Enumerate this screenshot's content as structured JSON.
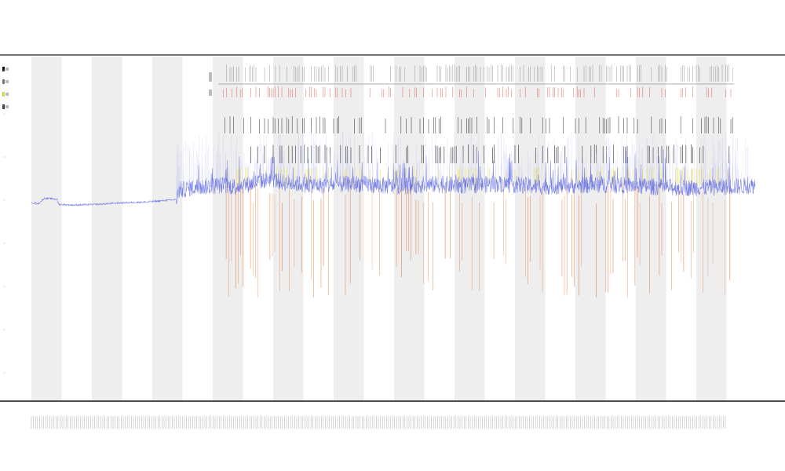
{
  "chart_data": {
    "type": "line",
    "title_lines": [
      "",
      "",
      ""
    ],
    "xlabel": "",
    "ylabel": "",
    "legend": {
      "placement": "top-left",
      "entries": []
    },
    "shaded_bands": 12,
    "grid": false,
    "series": [
      {
        "color": "#4a55e0",
        "x_start": 0,
        "x_end": 100,
        "baseline_profile": [
          [
            0,
            42.5
          ],
          [
            1.0,
            42.8
          ],
          [
            1.8,
            41.2
          ],
          [
            3.5,
            41.5
          ],
          [
            3.8,
            43.0
          ],
          [
            6.0,
            43.2
          ],
          [
            9.0,
            43.0
          ],
          [
            12.0,
            42.6
          ],
          [
            16.0,
            42.3
          ],
          [
            20.0,
            41.6
          ],
          [
            20.3,
            39.0
          ],
          [
            22.0,
            38.2
          ],
          [
            24.0,
            37.8
          ],
          [
            26.0,
            37.5
          ],
          [
            28.0,
            37.8
          ],
          [
            30.0,
            37.2
          ],
          [
            33.0,
            35.5
          ],
          [
            35.0,
            36.8
          ],
          [
            40.0,
            37.5
          ],
          [
            45.0,
            37.0
          ],
          [
            50.0,
            37.8
          ],
          [
            55.0,
            37.2
          ],
          [
            60.0,
            37.5
          ],
          [
            65.0,
            37.0
          ],
          [
            70.0,
            37.8
          ],
          [
            75.0,
            37.5
          ],
          [
            80.0,
            37.2
          ],
          [
            85.0,
            37.8
          ],
          [
            90.0,
            38.2
          ],
          [
            95.0,
            38.0
          ],
          [
            100.0,
            37.5
          ]
        ]
      }
    ],
    "annotation_rows": {
      "colors": [
        "#555555",
        "#111111",
        "#111111",
        "#e23020",
        "#f0e030",
        "#e36a2a"
      ]
    },
    "ylim": [
      0,
      100
    ],
    "xlim": [
      0,
      100
    ]
  }
}
